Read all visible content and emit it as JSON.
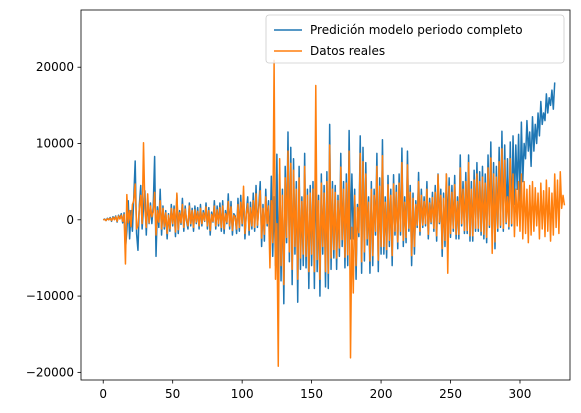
{
  "chart_data": {
    "type": "line",
    "title": "",
    "xlabel": "",
    "ylabel": "",
    "xlim": [
      -16,
      336
    ],
    "ylim": [
      -21000,
      27500
    ],
    "grid": false,
    "legend_position": "top-right",
    "x_ticks": [
      0,
      50,
      100,
      150,
      200,
      250,
      300
    ],
    "y_ticks": [
      -20000,
      -10000,
      0,
      10000,
      20000
    ],
    "x_tick_labels": [
      "0",
      "50",
      "100",
      "150",
      "200",
      "250",
      "300"
    ],
    "y_tick_labels": [
      "−20000",
      "−10000",
      "0",
      "10000",
      "20000"
    ],
    "series": [
      {
        "name": "Predición modelo periodo completo",
        "color": "#1f77b4",
        "x_start": 0,
        "values": [
          0,
          100,
          -100,
          200,
          0,
          300,
          -200,
          400,
          100,
          500,
          -300,
          600,
          200,
          800,
          -400,
          900,
          -3800,
          -1500,
          2500,
          -2500,
          1200,
          -1500,
          3000,
          7700,
          -1800,
          -4000,
          2000,
          4500,
          -1200,
          1600,
          3800,
          -2000,
          2800,
          -500,
          2200,
          -500,
          1800,
          8300,
          -4800,
          1700,
          -1000,
          4000,
          -2000,
          1800,
          -1200,
          1200,
          -2500,
          800,
          -1500,
          2000,
          -800,
          1800,
          -2200,
          3300,
          -1800,
          1200,
          -600,
          2800,
          -1500,
          1800,
          -200,
          -1200,
          2200,
          -800,
          1500,
          -1500,
          1800,
          -500,
          1600,
          -1200,
          2000,
          -800,
          1200,
          -200,
          2200,
          -1200,
          1600,
          -2000,
          1000,
          -300,
          2500,
          -1200,
          1800,
          -800,
          2200,
          -1500,
          2500,
          -1800,
          1200,
          -500,
          3400,
          -1200,
          2400,
          -2000,
          800,
          500,
          -1800,
          2800,
          -1500,
          3200,
          -800,
          3300,
          -2500,
          1000,
          3000,
          -2000,
          2300,
          -1200,
          3500,
          -1500,
          4500,
          -1000,
          2000,
          5000,
          -3500,
          2000,
          -2800,
          4000,
          -800,
          2500,
          -3500,
          5700,
          -4800,
          3000,
          -6000,
          8600,
          -7900,
          6000,
          -8000,
          4000,
          -11000,
          7000,
          -3000,
          11500,
          -5500,
          9500,
          -8500,
          8000,
          -4500,
          5000,
          -10800,
          7000,
          -6500,
          3000,
          -6000,
          8700,
          -6300,
          4000,
          -9000,
          4500,
          -6000,
          5000,
          -9000,
          9000,
          -6800,
          3200,
          -10000,
          6000,
          -4500,
          4500,
          -8800,
          6300,
          -9000,
          12500,
          -6500,
          5000,
          -5000,
          4500,
          -6500,
          3200,
          -4800,
          8700,
          -3500,
          5000,
          -6300,
          6000,
          -6000,
          11700,
          -2500,
          6000,
          -2500,
          4000,
          -7800,
          2000,
          -2200,
          11000,
          -7000,
          9500,
          -5400,
          7500,
          -3300,
          3000,
          -7000,
          5000,
          -6000,
          4000,
          -2000,
          8700,
          -6800,
          5500,
          -4500,
          10500,
          -4500,
          3000,
          -5000,
          5800,
          -3500,
          4000,
          -6000,
          5900,
          -2000,
          4500,
          -3800,
          6000,
          -2000,
          9400,
          -3500,
          3000,
          -3000,
          9000,
          -1500,
          4500,
          -6000,
          3500,
          -4500,
          2500,
          -1000,
          6200,
          -2000,
          4000,
          -1000,
          3000,
          -800,
          5000,
          -2500,
          2800,
          -500,
          3600,
          -1500,
          4500,
          -2800,
          6000,
          -500,
          4000,
          -4800,
          3500,
          -3500,
          6000,
          -1000,
          5500,
          -2300,
          4500,
          -1500,
          5800,
          -2500,
          3000,
          -2500,
          8500,
          -800,
          5000,
          -1800,
          6200,
          -1800,
          8500,
          -2800,
          5000,
          -2800,
          6500,
          -1500,
          7500,
          -1500,
          6300,
          -2000,
          7000,
          -2500,
          6000,
          -3000,
          8500,
          -1000,
          10200,
          -2200,
          7500,
          -3800,
          7000,
          -1500,
          9500,
          -1000,
          11600,
          -1500,
          9800,
          -500,
          8000,
          -1200,
          10200,
          -800,
          11000,
          2000,
          9800,
          4000,
          11200,
          2500,
          12800,
          5000,
          10000,
          8000,
          13000,
          9000,
          11500,
          7000,
          13500,
          9000,
          12500,
          10000,
          14000,
          11000,
          15500,
          12500,
          14000,
          13000,
          16500,
          14000,
          16000,
          15000,
          17000,
          14500,
          18000
        ]
      },
      {
        "name": "Datos reales",
        "color": "#ff7f0e",
        "x_start": 0,
        "values": [
          0,
          50,
          -100,
          150,
          0,
          200,
          -100,
          300,
          0,
          400,
          -200,
          500,
          100,
          600,
          -200,
          700,
          -5800,
          3300,
          -400,
          1200,
          -900,
          2000,
          2500,
          4700,
          -1200,
          -800,
          1500,
          3200,
          -500,
          10100,
          1500,
          -1000,
          3400,
          -400,
          1800,
          400,
          1000,
          3600,
          -2000,
          1200,
          -300,
          2500,
          -1200,
          1500,
          -900,
          900,
          -1800,
          600,
          -1200,
          1500,
          -500,
          1400,
          -1600,
          3500,
          -1300,
          900,
          -400,
          2000,
          -1000,
          1400,
          -100,
          -800,
          1800,
          -500,
          1200,
          -1000,
          1300,
          -300,
          1100,
          -800,
          1500,
          -500,
          900,
          -100,
          1700,
          -800,
          1200,
          -1400,
          700,
          -200,
          1800,
          -800,
          1300,
          -500,
          1600,
          -1000,
          1800,
          -1200,
          800,
          -300,
          2400,
          -800,
          1700,
          -1400,
          600,
          300,
          -1200,
          2000,
          -1000,
          2300,
          -500,
          4400,
          -1800,
          700,
          2100,
          -1400,
          1600,
          -800,
          2500,
          -1000,
          3400,
          -700,
          1400,
          3800,
          -2400,
          1500,
          -1900,
          3000,
          -500,
          1800,
          -6300,
          2500,
          -3000,
          20900,
          -7800,
          -500,
          -19200,
          8000,
          -6000,
          3200,
          -8500,
          5500,
          -2300,
          9000,
          -4200,
          7400,
          -6500,
          6500,
          -3500,
          4000,
          -7800,
          5500,
          -5000,
          2400,
          -4500,
          7000,
          -4800,
          3200,
          -6800,
          3500,
          -4500,
          4000,
          -6800,
          17600,
          -5200,
          2500,
          -7800,
          4800,
          -3500,
          3500,
          -6800,
          5000,
          -7000,
          9800,
          -5000,
          4000,
          -3900,
          3600,
          -5000,
          2500,
          -3700,
          6900,
          -2600,
          4000,
          -4900,
          4800,
          -4600,
          9000,
          -18100,
          -1000,
          -9600,
          3200,
          -6000,
          1600,
          -1700,
          8700,
          -5500,
          7600,
          -4200,
          6000,
          -2500,
          2300,
          -5400,
          4000,
          -4700,
          3200,
          -1500,
          7000,
          -5300,
          4400,
          -3500,
          8400,
          -3500,
          2300,
          -3900,
          4600,
          -2700,
          3200,
          -4700,
          4700,
          -1500,
          3600,
          -2900,
          4800,
          -1500,
          7500,
          -2700,
          2300,
          -2300,
          7200,
          -1100,
          3600,
          -4700,
          2800,
          -3500,
          2000,
          -700,
          5000,
          -1500,
          3200,
          -700,
          2400,
          -500,
          4000,
          -1900,
          2200,
          -300,
          2900,
          -1100,
          3600,
          -2100,
          5900,
          -300,
          3200,
          -3800,
          2800,
          -2700,
          6000,
          -7000,
          4400,
          -1800,
          3600,
          -1100,
          4600,
          -1900,
          2400,
          -1900,
          6800,
          -500,
          4000,
          -1400,
          5000,
          -1400,
          7500,
          -2100,
          4000,
          -2100,
          5200,
          -1100,
          6000,
          -1100,
          5000,
          -1500,
          5600,
          -1900,
          4800,
          -2300,
          6800,
          -700,
          8100,
          -4400,
          6000,
          -2900,
          5600,
          -1100,
          7600,
          -700,
          9300,
          -1100,
          7800,
          -300,
          3000,
          -900,
          8000,
          -500,
          6000,
          -2200,
          4000,
          -800,
          5000,
          -1500,
          6000,
          -2500,
          5000,
          -1800,
          4000,
          -3000,
          4500,
          -2000,
          5000,
          -1500,
          4200,
          -800,
          3500,
          -2500,
          4800,
          -1200,
          3800,
          -2200,
          5200,
          -1500,
          4200,
          -2800,
          3500,
          -2000,
          6000,
          -1000,
          5200,
          -1800,
          6300,
          1500,
          3200,
          1900
        ]
      }
    ]
  }
}
